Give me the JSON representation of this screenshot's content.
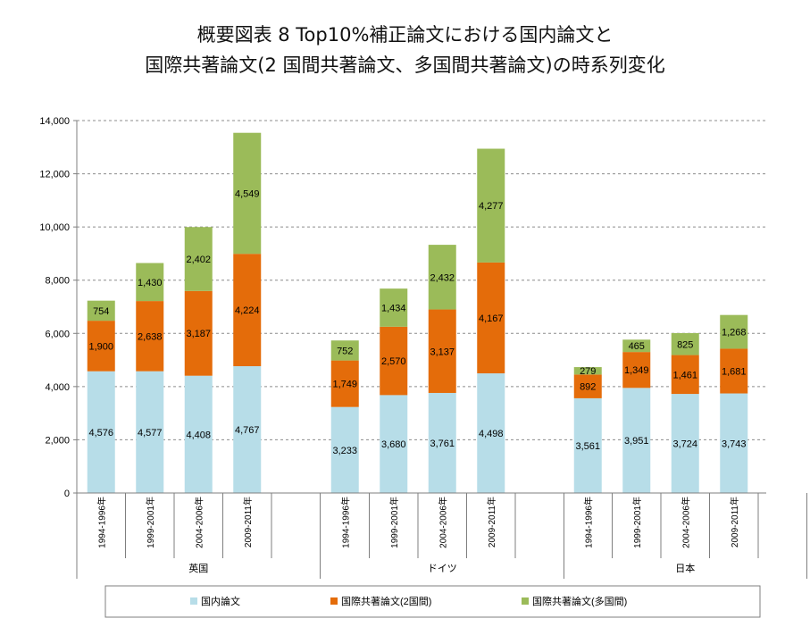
{
  "title": {
    "line1": "概要図表 8 Top10%補正論文における国内論文と",
    "line2": "国際共著論文(2 国間共著論文、多国間共著論文)の時系列変化"
  },
  "chart_data": {
    "type": "bar",
    "stacked": true,
    "ylim": [
      0,
      14000
    ],
    "yticks": [
      "0",
      "2,000",
      "4,000",
      "6,000",
      "8,000",
      "10,000",
      "12,000",
      "14,000"
    ],
    "grid": true,
    "legend_position": "bottom",
    "groups": [
      {
        "name": "英国",
        "periods": [
          "1994-1996年",
          "1999-2001年",
          "2004-2006年",
          "2009-2011年"
        ]
      },
      {
        "name": "ドイツ",
        "periods": [
          "1994-1996年",
          "1999-2001年",
          "2004-2006年",
          "2009-2011年"
        ]
      },
      {
        "name": "日本",
        "periods": [
          "1994-1996年",
          "1999-2001年",
          "2004-2006年",
          "2009-2011年"
        ]
      }
    ],
    "series": [
      {
        "name": "国内論文",
        "color": "#b7dde8",
        "values": [
          [
            4576,
            4577,
            4408,
            4767
          ],
          [
            3233,
            3680,
            3761,
            4498
          ],
          [
            3561,
            3951,
            3724,
            3743
          ]
        ],
        "labels": [
          [
            "4,576",
            "4,577",
            "4,408",
            "4,767"
          ],
          [
            "3,233",
            "3,680",
            "3,761",
            "4,498"
          ],
          [
            "3,561",
            "3,951",
            "3,724",
            "3,743"
          ]
        ]
      },
      {
        "name": "国際共著論文(2国間)",
        "color": "#e46c0a",
        "values": [
          [
            1900,
            2638,
            3187,
            4224
          ],
          [
            1749,
            2570,
            3137,
            4167
          ],
          [
            892,
            1349,
            1461,
            1681
          ]
        ],
        "labels": [
          [
            "1,900",
            "2,638",
            "3,187",
            "4,224"
          ],
          [
            "1,749",
            "2,570",
            "3,137",
            "4,167"
          ],
          [
            "892",
            "1,349",
            "1,461",
            "1,681"
          ]
        ]
      },
      {
        "name": "国際共著論文(多国間)",
        "color": "#9bbb59",
        "values": [
          [
            754,
            1430,
            2402,
            4549
          ],
          [
            752,
            1434,
            2432,
            4277
          ],
          [
            279,
            465,
            825,
            1268
          ]
        ],
        "labels": [
          [
            "754",
            "1,430",
            "2,402",
            "4,549"
          ],
          [
            "752",
            "1,434",
            "2,432",
            "4,277"
          ],
          [
            "279",
            "465",
            "825",
            "1,268"
          ]
        ]
      }
    ]
  }
}
